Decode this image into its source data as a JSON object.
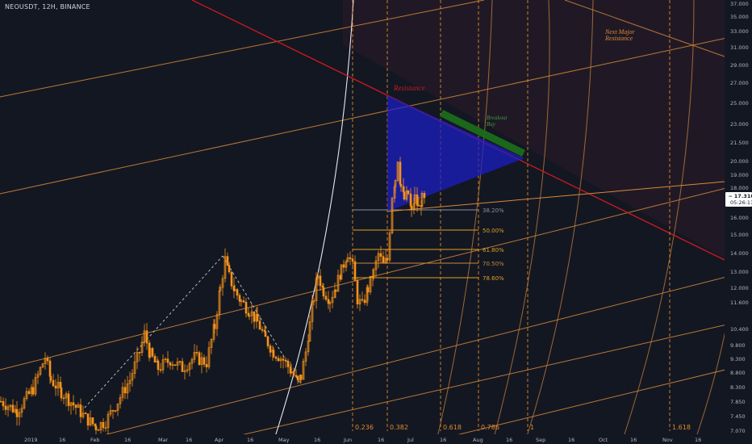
{
  "header": {
    "symbol_line": "NEOUSDT, 12H, BINANCE"
  },
  "colors": {
    "background": "#131722",
    "candle": "#f7931a",
    "orange_line": "#d9893a",
    "fib_line": "#e0a020",
    "resistance": "#d0191f",
    "triangle_fill": "#1c1ec8",
    "breakout_box": "#1b6b1b",
    "dashed": "#e08a25",
    "white_curve": "#e8e8ee",
    "axis_text": "#b2b5be",
    "price_badge": "#ffffff",
    "pink_zone": "#3a1d2a"
  },
  "chart_data": {
    "type": "candlestick",
    "title": "NEOUSDT, 12H, BINANCE",
    "yscale": "log",
    "ylim": [
      7.07,
      38.0
    ],
    "y_ticks": [
      "37.000",
      "35.000",
      "33.000",
      "31.000",
      "29.000",
      "27.000",
      "25.000",
      "23.000",
      "21.500",
      "20.000",
      "19.000",
      "18.000",
      "17.310",
      "16.000",
      "15.000",
      "14.000",
      "13.000",
      "12.000",
      "11.600",
      "10.400",
      "9.800",
      "9.300",
      "8.800",
      "8.300",
      "7.850",
      "7.450",
      "7.070"
    ],
    "x_ticks": [
      "2019",
      "16",
      "Feb",
      "16",
      "Mar",
      "16",
      "Apr",
      "16",
      "May",
      "16",
      "Jun",
      "16",
      "Jul",
      "16",
      "Aug",
      "16",
      "Sep",
      "16",
      "Oct",
      "16",
      "Nov",
      "16"
    ],
    "last_price": "17.310",
    "countdown": "05:26:11",
    "fib_levels": [
      {
        "label": "38.20%"
      },
      {
        "label": "50.00%"
      },
      {
        "label": "61.80%"
      },
      {
        "label": "70.50%"
      },
      {
        "label": "78.60%"
      }
    ],
    "time_fib_labels": [
      "0.236",
      "0.382",
      "0.618",
      "0.786",
      "1",
      "1.618"
    ],
    "annotations": {
      "resistance": "Resistance",
      "breakout_line1": "Breakout",
      "breakout_line2": "Buy",
      "next_major_line1": "Next Major",
      "next_major_line2": "Resistance"
    },
    "price_path": [
      [
        0,
        7.9
      ],
      [
        20,
        7.6
      ],
      [
        40,
        8.3
      ],
      [
        55,
        9.4
      ],
      [
        62,
        8.6
      ],
      [
        75,
        8.2
      ],
      [
        90,
        7.8
      ],
      [
        105,
        7.4
      ],
      [
        118,
        7.15
      ],
      [
        130,
        7.3
      ],
      [
        145,
        7.9
      ],
      [
        160,
        8.6
      ],
      [
        172,
        9.6
      ],
      [
        178,
        10.3
      ],
      [
        185,
        9.5
      ],
      [
        195,
        9.0
      ],
      [
        210,
        9.3
      ],
      [
        225,
        9.0
      ],
      [
        240,
        9.4
      ],
      [
        255,
        9.2
      ],
      [
        265,
        10.6
      ],
      [
        272,
        12.3
      ],
      [
        278,
        13.8
      ],
      [
        283,
        12.9
      ],
      [
        290,
        12.2
      ],
      [
        298,
        11.7
      ],
      [
        308,
        11.3
      ],
      [
        318,
        10.8
      ],
      [
        328,
        10.1
      ],
      [
        338,
        9.6
      ],
      [
        350,
        9.3
      ],
      [
        360,
        8.9
      ],
      [
        368,
        8.5
      ],
      [
        372,
        8.7
      ],
      [
        378,
        9.6
      ],
      [
        383,
        10.7
      ],
      [
        388,
        11.9
      ],
      [
        393,
        13.0
      ],
      [
        400,
        12.2
      ],
      [
        408,
        11.8
      ],
      [
        415,
        12.4
      ],
      [
        422,
        13.2
      ],
      [
        430,
        14.2
      ],
      [
        436,
        13.4
      ],
      [
        442,
        11.8
      ],
      [
        448,
        11.5
      ],
      [
        455,
        12.3
      ],
      [
        462,
        13.1
      ],
      [
        468,
        14.1
      ],
      [
        474,
        13.5
      ],
      [
        479,
        13.8
      ],
      [
        482,
        15.6
      ],
      [
        485,
        17.8
      ],
      [
        489,
        19.0
      ],
      [
        492,
        20.6
      ],
      [
        496,
        18.4
      ],
      [
        500,
        17.5
      ],
      [
        505,
        17.9
      ],
      [
        509,
        16.6
      ],
      [
        513,
        17.6
      ],
      [
        518,
        16.9
      ],
      [
        522,
        17.5
      ],
      [
        526,
        17.31
      ]
    ]
  }
}
